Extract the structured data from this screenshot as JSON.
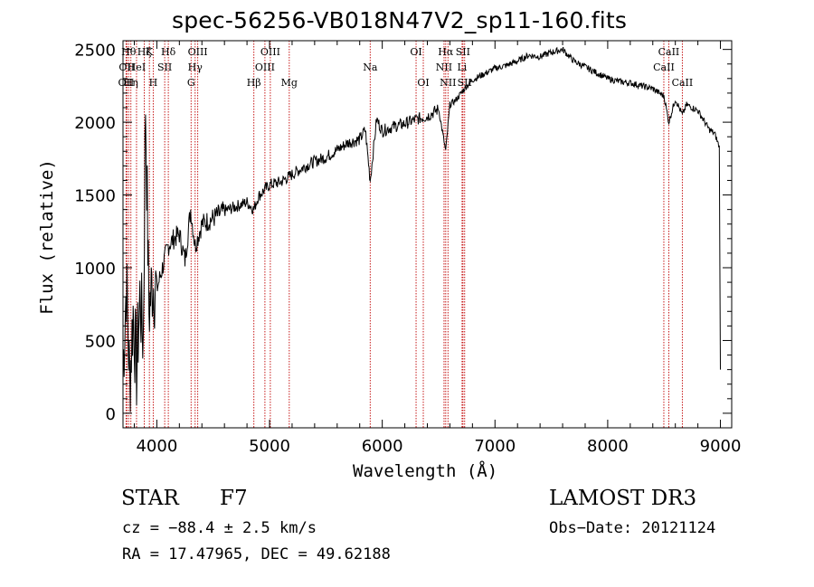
{
  "chart_data": {
    "type": "line",
    "title": "spec-56256-VB018N47V2_sp11-160.fits",
    "xlabel": "Wavelength (Å)",
    "ylabel": "Flux (relative)",
    "xlim": [
      3700,
      9100
    ],
    "ylim": [
      -100,
      2560
    ],
    "xticks": [
      4000,
      5000,
      6000,
      7000,
      8000,
      9000
    ],
    "yticks": [
      0,
      500,
      1000,
      1500,
      2000,
      2500
    ],
    "grid": false,
    "line_color": "#000000",
    "marker_color": "#c00000",
    "series": [
      {
        "name": "flux",
        "x": [
          3700,
          3730,
          3760,
          3790,
          3820,
          3850,
          3880,
          3900,
          3930,
          3960,
          4000,
          4050,
          4100,
          4150,
          4200,
          4250,
          4300,
          4340,
          4400,
          4500,
          4600,
          4700,
          4800,
          4861,
          4900,
          5000,
          5100,
          5200,
          5300,
          5400,
          5500,
          5600,
          5700,
          5800,
          5850,
          5893,
          5950,
          6000,
          6100,
          6200,
          6300,
          6400,
          6500,
          6563,
          6600,
          6650,
          6700,
          6750,
          6800,
          6900,
          7000,
          7100,
          7200,
          7300,
          7400,
          7500,
          7600,
          7700,
          7800,
          7900,
          8000,
          8100,
          8200,
          8300,
          8400,
          8500,
          8542,
          8600,
          8662,
          8700,
          8800,
          8900,
          8950,
          8990,
          9000
        ],
        "y": [
          300,
          900,
          200,
          700,
          300,
          800,
          500,
          2150,
          700,
          900,
          850,
          1000,
          1150,
          1200,
          1230,
          1050,
          1400,
          1150,
          1300,
          1340,
          1390,
          1420,
          1450,
          1400,
          1490,
          1570,
          1590,
          1640,
          1690,
          1730,
          1760,
          1810,
          1860,
          1880,
          1950,
          1600,
          2020,
          1940,
          1970,
          1990,
          2020,
          2040,
          2090,
          1800,
          2120,
          2150,
          2200,
          2250,
          2290,
          2330,
          2370,
          2390,
          2420,
          2460,
          2450,
          2480,
          2500,
          2420,
          2380,
          2340,
          2300,
          2280,
          2270,
          2250,
          2230,
          2180,
          2000,
          2160,
          2050,
          2120,
          2080,
          1950,
          1920,
          1830,
          300
        ]
      }
    ],
    "lines": [
      {
        "wl": 3727,
        "label": "OII",
        "row": 2
      },
      {
        "wl": 3734,
        "label": "OII",
        "row": 1
      },
      {
        "wl": 3750,
        "label": "Hθ",
        "row": 0
      },
      {
        "wl": 3770,
        "label": "Hη",
        "row": 2
      },
      {
        "wl": 3820,
        "label": "HeI",
        "row": 1
      },
      {
        "wl": 3889,
        "label": "Hζ",
        "row": 0
      },
      {
        "wl": 3934,
        "label": "K",
        "row": 0
      },
      {
        "wl": 3968,
        "label": "H",
        "row": 2
      },
      {
        "wl": 4070,
        "label": "SII",
        "row": 1
      },
      {
        "wl": 4102,
        "label": "Hδ",
        "row": 0
      },
      {
        "wl": 4304,
        "label": "G",
        "row": 2
      },
      {
        "wl": 4340,
        "label": "Hγ",
        "row": 1
      },
      {
        "wl": 4363,
        "label": "OIII",
        "row": 0
      },
      {
        "wl": 4861,
        "label": "Hβ",
        "row": 2
      },
      {
        "wl": 4959,
        "label": "OIII",
        "row": 1
      },
      {
        "wl": 5007,
        "label": "OIII",
        "row": 0
      },
      {
        "wl": 5175,
        "label": "Mg",
        "row": 2
      },
      {
        "wl": 5893,
        "label": "Na",
        "row": 1
      },
      {
        "wl": 6300,
        "label": "OI",
        "row": 0
      },
      {
        "wl": 6364,
        "label": "OI",
        "row": 2
      },
      {
        "wl": 6548,
        "label": "NII",
        "row": 1
      },
      {
        "wl": 6563,
        "label": "Hα",
        "row": 0
      },
      {
        "wl": 6583,
        "label": "NII",
        "row": 2
      },
      {
        "wl": 6708,
        "label": "Li",
        "row": 1
      },
      {
        "wl": 6716,
        "label": "SII",
        "row": 0
      },
      {
        "wl": 6731,
        "label": "SII",
        "row": 2
      },
      {
        "wl": 8498,
        "label": "CaII",
        "row": 1
      },
      {
        "wl": 8542,
        "label": "CaII",
        "row": 0
      },
      {
        "wl": 8662,
        "label": "CaII",
        "row": 2
      }
    ]
  },
  "info": {
    "class_label": "STAR",
    "subclass": "F7",
    "survey": "LAMOST DR3",
    "cz": "cz = −88.4 ± 2.5 km/s",
    "obs_date": "Obs−Date: 20121124",
    "coords": "RA =  17.47965, DEC =  49.62188"
  }
}
